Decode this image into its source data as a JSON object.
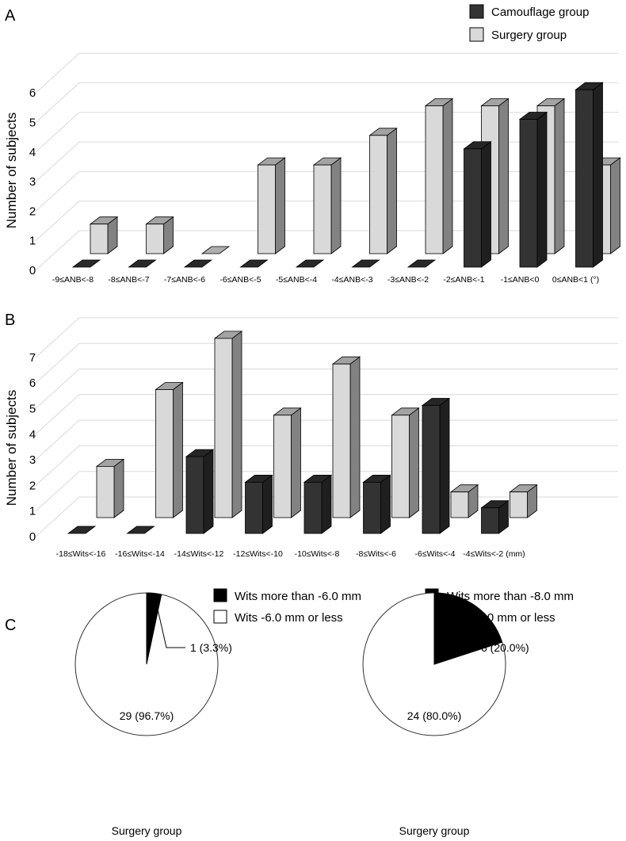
{
  "colors": {
    "camouflage": "#333333",
    "surgery": "#d9d9d9",
    "grid": "#d9d9d9",
    "slice_dark": "#000000",
    "slice_light": "#ffffff"
  },
  "legend": {
    "camouflage": "Camouflage group",
    "surgery": "Surgery group"
  },
  "chart_data": [
    {
      "panel": "A",
      "type": "bar",
      "ylabel": "Number of subjects",
      "ylim": [
        0,
        6
      ],
      "yticks": [
        "0",
        "1",
        "2",
        "3",
        "4",
        "5",
        "6"
      ],
      "categories": [
        "-9≤ANB<-8",
        "-8≤ANB<-7",
        "-7≤ANB<-6",
        "-6≤ANB<-5",
        "-5≤ANB<-4",
        "-4≤ANB<-3",
        "-3≤ANB<-2",
        "-2≤ANB<-1",
        "-1≤ANB<0",
        "0≤ANB<1 (°)"
      ],
      "series": [
        {
          "name": "Camouflage group",
          "values": [
            0,
            0,
            0,
            0,
            0,
            0,
            0,
            4,
            5,
            6
          ]
        },
        {
          "name": "Surgery group",
          "values": [
            1,
            1,
            0,
            3,
            3,
            4,
            5,
            5,
            5,
            3
          ]
        }
      ],
      "legend_position": "top-right"
    },
    {
      "panel": "B",
      "type": "bar",
      "ylabel": "Number of subjects",
      "ylim": [
        0,
        7
      ],
      "yticks": [
        "0",
        "1",
        "2",
        "3",
        "4",
        "5",
        "6",
        "7"
      ],
      "categories": [
        "-18≤Wits<-16",
        "-16≤Wits<-14",
        "-14≤Wits<-12",
        "-12≤Wits<-10",
        "-10≤Wits<-8",
        "-8≤Wits<-6",
        "-6≤Wits<-4",
        "-4≤Wits<-2 (mm)"
      ],
      "series": [
        {
          "name": "Camouflage group",
          "values": [
            0,
            0,
            3,
            2,
            2,
            2,
            5,
            1
          ]
        },
        {
          "name": "Surgery group",
          "values": [
            2,
            5,
            7,
            4,
            6,
            4,
            1,
            1
          ]
        }
      ]
    },
    {
      "panel": "C",
      "type": "pie",
      "title": "Surgery group",
      "legend": [
        "Wits more than -6.0 mm",
        "Wits -6.0 mm or less"
      ],
      "values": [
        1,
        29
      ],
      "labels": [
        "1 (3.3%)",
        "29 (96.7%)"
      ]
    },
    {
      "panel": "C",
      "type": "pie",
      "title": "Surgery group",
      "legend": [
        "Wits more than -8.0 mm",
        "Wits -8.0 mm or less"
      ],
      "values": [
        6,
        24
      ],
      "labels": [
        "6 (20.0%)",
        "24 (80.0%)"
      ]
    }
  ]
}
